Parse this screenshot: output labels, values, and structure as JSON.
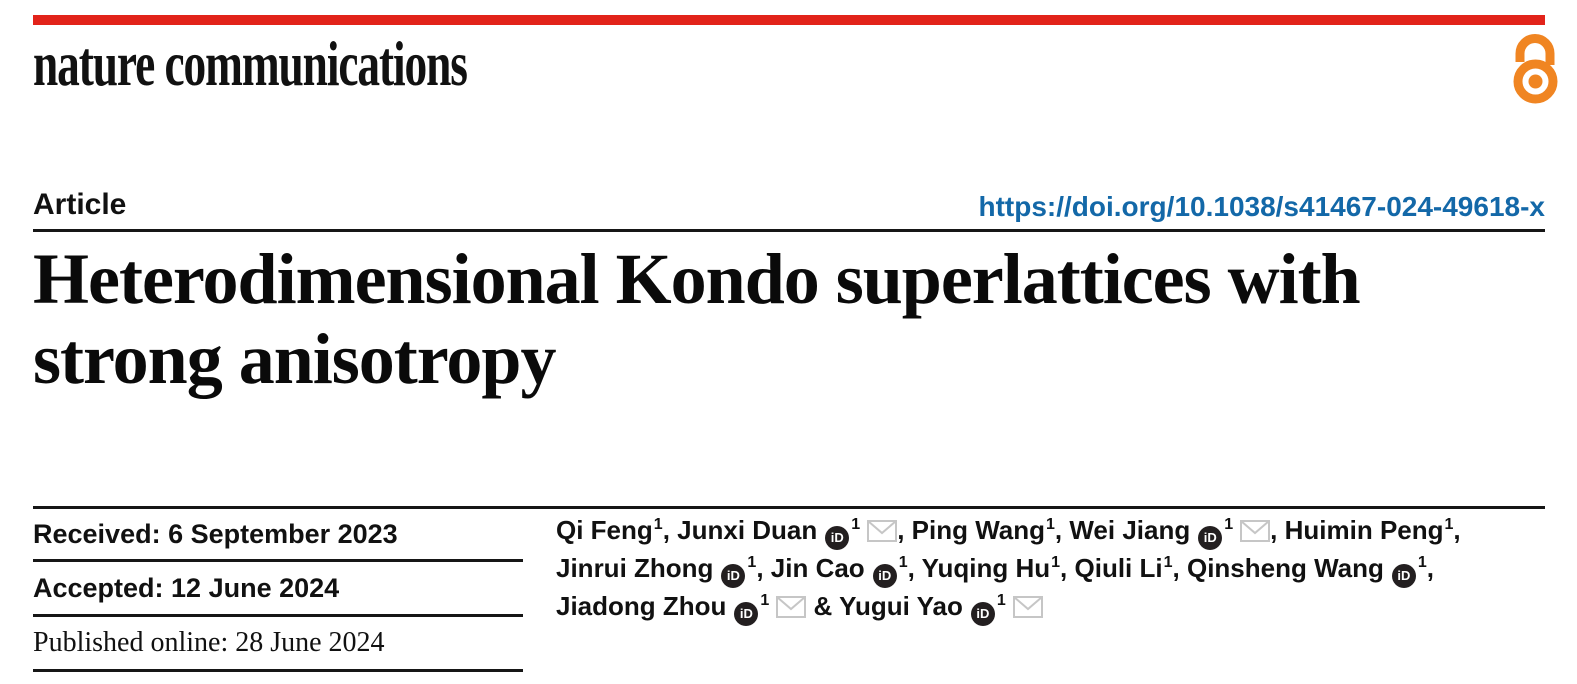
{
  "journal": {
    "wordmark": "nature communications",
    "accent_red": "#e2231a",
    "open_access_orange": "#f08522"
  },
  "header": {
    "article_label": "Article",
    "doi": "https://doi.org/10.1038/s41467-024-49618-x",
    "doi_color": "#1368a8"
  },
  "title": "Heterodimensional Kondo superlattices with strong anisotropy",
  "title_lines": [
    "Heterodimensional Kondo superlattices with",
    "strong anisotropy"
  ],
  "dates": {
    "received": "Received: 6 September 2023",
    "accepted": "Accepted: 12 June 2024",
    "published": "Published online: 28 June 2024"
  },
  "icons": {
    "open_access": "open-padlock",
    "orcid_label": "iD",
    "mail": "envelope",
    "mail_gray": "#c6c6c6",
    "orcid_black": "#231f20"
  },
  "authors": {
    "lines": [
      [
        {
          "name": "Qi Feng",
          "sup": "1",
          "orcid": false,
          "mail": false,
          "sep": ", "
        },
        {
          "name": "Junxi Duan",
          "sup": "1",
          "orcid": true,
          "mail": true,
          "sep": ", "
        },
        {
          "name": "Ping Wang",
          "sup": "1",
          "orcid": false,
          "mail": false,
          "sep": ", "
        },
        {
          "name": "Wei Jiang",
          "sup": "1",
          "orcid": true,
          "mail": true,
          "sep": ", "
        },
        {
          "name": "Huimin Peng",
          "sup": "1",
          "orcid": false,
          "mail": false,
          "sep": ","
        }
      ],
      [
        {
          "name": "Jinrui Zhong",
          "sup": "1",
          "orcid": true,
          "mail": false,
          "sep": ", "
        },
        {
          "name": "Jin Cao",
          "sup": "1",
          "orcid": true,
          "mail": false,
          "sep": ", "
        },
        {
          "name": "Yuqing Hu",
          "sup": "1",
          "orcid": false,
          "mail": false,
          "sep": ", "
        },
        {
          "name": "Qiuli Li",
          "sup": "1",
          "orcid": false,
          "mail": false,
          "sep": ", "
        },
        {
          "name": "Qinsheng Wang",
          "sup": "1",
          "orcid": true,
          "mail": false,
          "sep": ","
        }
      ],
      [
        {
          "name": "Jiadong Zhou",
          "sup": "1",
          "orcid": true,
          "mail": true,
          "sep": " & "
        },
        {
          "name": "Yugui Yao",
          "sup": "1",
          "orcid": true,
          "mail": true,
          "sep": ""
        }
      ]
    ]
  }
}
